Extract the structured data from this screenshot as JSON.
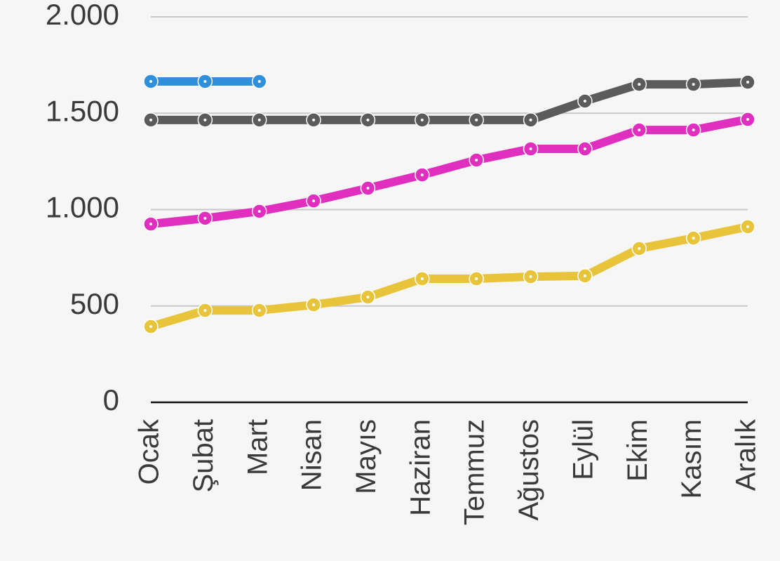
{
  "chart_data": {
    "type": "line",
    "categories": [
      "Ocak",
      "Şubat",
      "Mart",
      "Nisan",
      "Mayıs",
      "Haziran",
      "Temmuz",
      "Ağustos",
      "Eylül",
      "Ekim",
      "Kasım",
      "Aralık"
    ],
    "series": [
      {
        "color": "#2f8fdc",
        "values": [
          1665,
          1665,
          1665,
          null,
          null,
          null,
          null,
          null,
          null,
          null,
          null,
          null
        ]
      },
      {
        "color": "#5b5b5b",
        "values": [
          1465,
          1465,
          1465,
          1465,
          1465,
          1465,
          1465,
          1465,
          1563,
          1650,
          1650,
          1661
        ]
      },
      {
        "color": "#e02ebf",
        "values": [
          925,
          955,
          991,
          1045,
          1111,
          1180,
          1257,
          1315,
          1315,
          1413,
          1413,
          1468
        ]
      },
      {
        "color": "#e8c43a",
        "values": [
          393,
          477,
          477,
          506,
          546,
          641,
          641,
          652,
          656,
          798,
          852,
          911
        ]
      }
    ],
    "ylim": [
      0,
      2000
    ],
    "yticks": [
      0,
      500,
      {
        "value": 1000,
        "label": "1.000"
      },
      {
        "value": 1500,
        "label": "1.500"
      },
      {
        "value": 2000,
        "label": "2.000"
      }
    ],
    "grid": true
  }
}
